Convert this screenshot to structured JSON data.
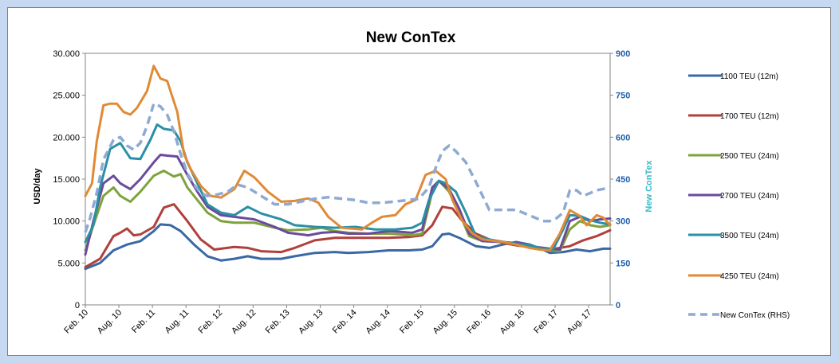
{
  "chart_data": {
    "type": "line",
    "title": "New ConTex",
    "ylabel": "USD/day",
    "y2label": "New ConTex",
    "ylim": [
      0,
      30000
    ],
    "y2lim": [
      0,
      900
    ],
    "yticks": [
      "0",
      "5.000",
      "10.000",
      "15.000",
      "20.000",
      "25.000",
      "30.000"
    ],
    "y2ticks": [
      "0",
      "150",
      "300",
      "450",
      "600",
      "750",
      "900"
    ],
    "x_range": [
      2010.08,
      2017.9
    ],
    "xtick_labels": [
      "Feb. 10",
      "Aug. 10",
      "Feb. 11",
      "Aug. 11",
      "Feb. 12",
      "Aug. 12",
      "Feb. 13",
      "Aug. 13",
      "Feb. 14",
      "Aug. 14",
      "Feb. 15",
      "Aug. 15",
      "Feb. 16",
      "Aug. 16",
      "Feb. 17",
      "Aug. 17"
    ],
    "xtick_values": [
      2010.08,
      2010.58,
      2011.08,
      2011.58,
      2012.08,
      2012.58,
      2013.08,
      2013.58,
      2014.08,
      2014.58,
      2015.08,
      2015.58,
      2016.08,
      2016.58,
      2017.08,
      2017.58
    ],
    "series": [
      {
        "name": "1100 TEU (12m)",
        "color": "#3a68a4",
        "axis": "left",
        "dashed": false,
        "x": [
          2010.08,
          2010.3,
          2010.5,
          2010.7,
          2010.9,
          2011.1,
          2011.2,
          2011.35,
          2011.5,
          2011.7,
          2011.9,
          2012.1,
          2012.3,
          2012.5,
          2012.7,
          2013.0,
          2013.2,
          2013.5,
          2013.8,
          2014.0,
          2014.3,
          2014.6,
          2014.9,
          2015.1,
          2015.25,
          2015.4,
          2015.5,
          2015.65,
          2015.9,
          2016.1,
          2016.3,
          2016.5,
          2016.7,
          2016.9,
          2017.0,
          2017.2,
          2017.4,
          2017.6,
          2017.8,
          2017.9
        ],
        "y": [
          4300,
          5000,
          6500,
          7200,
          7600,
          8800,
          9600,
          9500,
          8800,
          7200,
          5800,
          5300,
          5500,
          5800,
          5500,
          5500,
          5800,
          6200,
          6300,
          6200,
          6300,
          6500,
          6500,
          6600,
          7000,
          8400,
          8500,
          8000,
          7000,
          6800,
          7200,
          7500,
          7200,
          6600,
          6200,
          6300,
          6600,
          6400,
          6700,
          6700
        ]
      },
      {
        "name": "1700 TEU (12m)",
        "color": "#b0403c",
        "axis": "left",
        "dashed": false,
        "x": [
          2010.08,
          2010.3,
          2010.5,
          2010.6,
          2010.7,
          2010.8,
          2010.9,
          2011.1,
          2011.25,
          2011.4,
          2011.6,
          2011.8,
          2012.0,
          2012.3,
          2012.5,
          2012.7,
          2013.0,
          2013.2,
          2013.5,
          2013.8,
          2014.0,
          2014.3,
          2014.6,
          2014.9,
          2015.1,
          2015.25,
          2015.4,
          2015.55,
          2015.7,
          2015.9,
          2016.1,
          2016.3,
          2016.5,
          2016.8,
          2017.0,
          2017.3,
          2017.5,
          2017.7,
          2017.9
        ],
        "y": [
          4500,
          5500,
          8200,
          8600,
          9100,
          8300,
          8400,
          9300,
          11600,
          12000,
          10000,
          7800,
          6600,
          6900,
          6800,
          6400,
          6300,
          6800,
          7700,
          8000,
          8000,
          8000,
          8000,
          8100,
          8300,
          9500,
          11700,
          11500,
          10000,
          8500,
          7800,
          7400,
          7100,
          6800,
          6600,
          7000,
          7700,
          8200,
          8900
        ]
      },
      {
        "name": "2500 TEU (24m)",
        "color": "#7ea33d",
        "axis": "left",
        "dashed": false,
        "x": [
          2010.08,
          2010.2,
          2010.35,
          2010.5,
          2010.6,
          2010.75,
          2010.9,
          2011.1,
          2011.25,
          2011.4,
          2011.5,
          2011.6,
          2011.75,
          2011.9,
          2012.1,
          2012.3,
          2012.6,
          2012.9,
          2013.1,
          2013.4,
          2013.6,
          2013.8,
          2014.0,
          2014.3,
          2014.6,
          2014.8,
          2014.95,
          2015.1,
          2015.25,
          2015.35,
          2015.5,
          2015.65,
          2015.8,
          2016.0,
          2016.3,
          2016.6,
          2016.8,
          2017.0,
          2017.15,
          2017.3,
          2017.45,
          2017.6,
          2017.75,
          2017.9
        ],
        "y": [
          6500,
          9500,
          13000,
          14000,
          13000,
          12300,
          13500,
          15400,
          16000,
          15300,
          15600,
          14000,
          12500,
          11000,
          10000,
          9800,
          9800,
          9200,
          8900,
          9000,
          9200,
          8800,
          8600,
          8500,
          8500,
          8400,
          8300,
          8500,
          13500,
          14800,
          13500,
          11000,
          8200,
          7600,
          7500,
          7100,
          6800,
          6500,
          6400,
          9000,
          10000,
          9500,
          9300,
          9500
        ]
      },
      {
        "name": "2700 TEU (24m)",
        "color": "#6b4a9c",
        "axis": "left",
        "dashed": false,
        "x": [
          2010.08,
          2010.2,
          2010.35,
          2010.5,
          2010.6,
          2010.75,
          2010.9,
          2011.1,
          2011.2,
          2011.3,
          2011.45,
          2011.6,
          2011.75,
          2011.9,
          2012.1,
          2012.3,
          2012.6,
          2012.9,
          2013.1,
          2013.4,
          2013.6,
          2013.8,
          2014.0,
          2014.3,
          2014.6,
          2014.8,
          2014.95,
          2015.1,
          2015.25,
          2015.35,
          2015.5,
          2015.65,
          2015.8,
          2016.0,
          2016.3,
          2016.6,
          2016.8,
          2017.0,
          2017.15,
          2017.3,
          2017.45,
          2017.6,
          2017.75,
          2017.9
        ],
        "y": [
          6000,
          10000,
          14500,
          15400,
          14500,
          13800,
          15000,
          17000,
          17900,
          17800,
          17700,
          15500,
          13500,
          11700,
          10700,
          10500,
          10200,
          9300,
          8600,
          8300,
          8600,
          8700,
          8500,
          8500,
          8800,
          8700,
          8600,
          9000,
          14000,
          14800,
          13800,
          11500,
          8500,
          7600,
          7500,
          7300,
          6900,
          6700,
          6600,
          10000,
          10500,
          10000,
          10200,
          10300
        ]
      },
      {
        "name": "3500 TEU (24m)",
        "color": "#2b8fa6",
        "axis": "left",
        "dashed": false,
        "x": [
          2010.08,
          2010.2,
          2010.3,
          2010.45,
          2010.6,
          2010.75,
          2010.9,
          2011.05,
          2011.15,
          2011.25,
          2011.4,
          2011.5,
          2011.6,
          2011.75,
          2011.9,
          2012.1,
          2012.3,
          2012.5,
          2012.7,
          2013.0,
          2013.2,
          2013.5,
          2013.8,
          2014.1,
          2014.4,
          2014.7,
          2014.95,
          2015.1,
          2015.2,
          2015.35,
          2015.45,
          2015.6,
          2015.75,
          2015.9,
          2016.1,
          2016.4,
          2016.7,
          2016.9,
          2017.05,
          2017.2,
          2017.3,
          2017.45,
          2017.6,
          2017.75,
          2017.9
        ],
        "y": [
          7500,
          9500,
          14000,
          18600,
          19300,
          17500,
          17400,
          19700,
          21500,
          21000,
          20800,
          19500,
          17000,
          14500,
          12000,
          11000,
          10700,
          11700,
          10900,
          10200,
          9500,
          9300,
          9200,
          9300,
          9000,
          9000,
          9200,
          9800,
          12500,
          14800,
          14500,
          13500,
          11000,
          8200,
          7800,
          7400,
          7100,
          6700,
          6600,
          9000,
          10700,
          10600,
          10100,
          9800,
          9600
        ]
      },
      {
        "name": "4250 TEU (24m)",
        "color": "#e08a35",
        "axis": "left",
        "dashed": false,
        "x": [
          2010.08,
          2010.18,
          2010.25,
          2010.35,
          2010.45,
          2010.55,
          2010.65,
          2010.75,
          2010.85,
          2011.0,
          2011.1,
          2011.2,
          2011.3,
          2011.45,
          2011.55,
          2011.65,
          2011.8,
          2011.95,
          2012.1,
          2012.3,
          2012.45,
          2012.6,
          2012.8,
          2013.0,
          2013.2,
          2013.4,
          2013.55,
          2013.7,
          2013.9,
          2014.2,
          2014.35,
          2014.5,
          2014.7,
          2014.85,
          2015.0,
          2015.15,
          2015.3,
          2015.45,
          2015.55,
          2015.7,
          2015.85,
          2016.0,
          2016.3,
          2016.5,
          2016.7,
          2016.85,
          2017.0,
          2017.15,
          2017.3,
          2017.45,
          2017.55,
          2017.7,
          2017.8,
          2017.9
        ],
        "y": [
          13000,
          14500,
          19500,
          23800,
          24000,
          24000,
          23000,
          22700,
          23500,
          25500,
          28500,
          27000,
          26700,
          23000,
          18000,
          16200,
          14200,
          13000,
          12800,
          13800,
          16000,
          15200,
          13500,
          12300,
          12400,
          12700,
          12200,
          10500,
          9200,
          9000,
          9800,
          10500,
          10700,
          12000,
          12500,
          15500,
          16000,
          15000,
          12500,
          10000,
          8500,
          7800,
          7500,
          7200,
          6800,
          6600,
          6500,
          8500,
          11300,
          10600,
          9500,
          10700,
          10400,
          9500
        ]
      },
      {
        "name": "New ConTex (RHS)",
        "color": "#8eaad2",
        "axis": "right",
        "dashed": true,
        "x": [
          2010.08,
          2010.15,
          2010.25,
          2010.35,
          2010.5,
          2010.6,
          2010.7,
          2010.8,
          2010.9,
          2011.0,
          2011.1,
          2011.2,
          2011.3,
          2011.4,
          2011.5,
          2011.6,
          2011.7,
          2011.8,
          2011.9,
          2012.05,
          2012.2,
          2012.35,
          2012.5,
          2012.7,
          2012.9,
          2013.1,
          2013.3,
          2013.5,
          2013.7,
          2013.9,
          2014.1,
          2014.3,
          2014.5,
          2014.7,
          2014.9,
          2015.05,
          2015.2,
          2015.3,
          2015.4,
          2015.5,
          2015.6,
          2015.75,
          2015.9,
          2016.1,
          2016.3,
          2016.5,
          2016.7,
          2016.9,
          2017.0,
          2017.1,
          2017.2,
          2017.3,
          2017.4,
          2017.5,
          2017.6,
          2017.7,
          2017.8,
          2017.9
        ],
        "y": [
          260,
          310,
          400,
          520,
          590,
          600,
          570,
          555,
          580,
          640,
          720,
          710,
          680,
          620,
          540,
          470,
          430,
          400,
          390,
          395,
          405,
          430,
          420,
          390,
          360,
          360,
          370,
          380,
          385,
          380,
          375,
          365,
          365,
          370,
          375,
          380,
          420,
          490,
          550,
          570,
          550,
          510,
          440,
          340,
          340,
          340,
          320,
          300,
          300,
          310,
          330,
          410,
          410,
          390,
          400,
          410,
          415,
          420
        ]
      }
    ]
  }
}
